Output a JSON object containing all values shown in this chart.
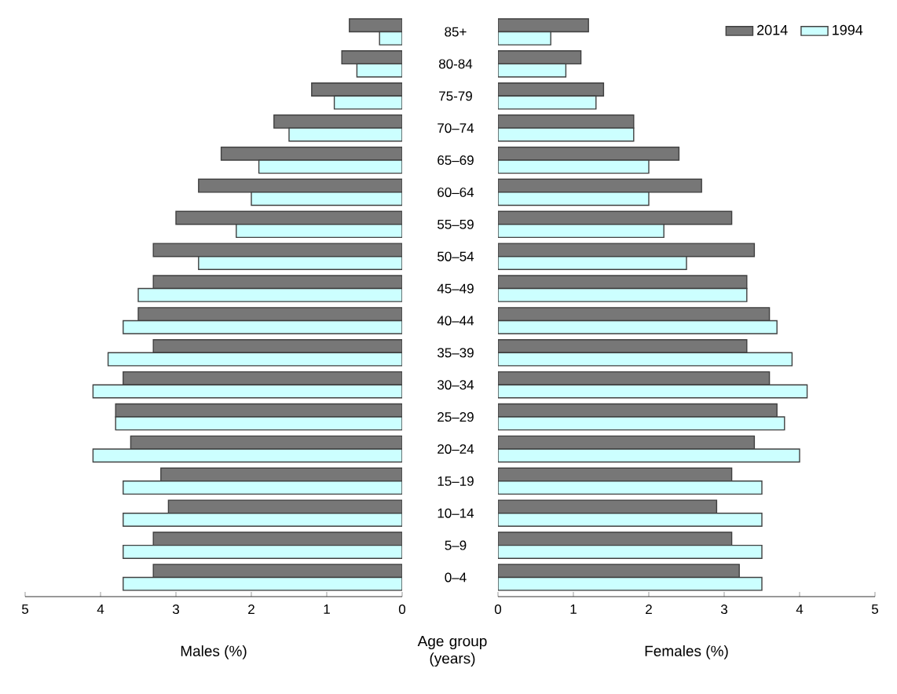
{
  "chart_data": [
    {
      "type": "bar",
      "orientation": "horizontal",
      "xlabel": "Males (%)",
      "xlim": [
        5,
        0
      ],
      "xticks": [
        5,
        4,
        3,
        2,
        1,
        0
      ],
      "categories": [
        "85+",
        "80-84",
        "75-79",
        "70–74",
        "65–69",
        "60–64",
        "55–59",
        "50–54",
        "45–49",
        "40–44",
        "35–39",
        "30–34",
        "25–29",
        "20–24",
        "15–19",
        "10–14",
        "5–9",
        "0–4"
      ],
      "series": [
        {
          "color": "#777777",
          "values": [
            0.7,
            0.8,
            1.2,
            1.7,
            2.4,
            2.7,
            3.0,
            3.3,
            3.3,
            3.5,
            3.3,
            3.7,
            3.8,
            3.6,
            3.2,
            3.1,
            3.3,
            3.3
          ]
        },
        {
          "color": "#ccffff",
          "values": [
            0.3,
            0.6,
            0.9,
            1.5,
            1.9,
            2.0,
            2.2,
            2.7,
            3.5,
            3.7,
            3.9,
            4.1,
            3.8,
            4.1,
            3.7,
            3.7,
            3.7,
            3.7
          ]
        }
      ]
    },
    {
      "type": "bar",
      "orientation": "horizontal",
      "xlabel": "Females (%)",
      "ylabel": "Age group (years)",
      "tick_labels": "x",
      "legend": "top right",
      "xlim": [
        0,
        5
      ],
      "xticks": [
        0,
        1,
        2,
        3,
        4,
        5
      ],
      "categories": [
        null,
        null,
        null,
        null,
        null,
        null,
        null,
        null,
        null,
        null,
        null,
        null,
        null,
        null,
        null,
        null,
        null,
        null
      ],
      "series": [
        {
          "name": "2014",
          "color": "#777777",
          "values": [
            1.2,
            1.1,
            1.4,
            1.8,
            2.4,
            2.7,
            3.1,
            3.4,
            3.3,
            3.6,
            3.3,
            3.6,
            3.7,
            3.4,
            3.1,
            2.9,
            3.1,
            3.2
          ]
        },
        {
          "name": "1994",
          "color": "#ccffff",
          "values": [
            0.7,
            0.9,
            1.3,
            1.8,
            2.0,
            2.0,
            2.2,
            2.5,
            3.3,
            3.7,
            3.9,
            4.1,
            3.8,
            4.0,
            3.5,
            3.5,
            3.5,
            3.5
          ]
        }
      ]
    }
  ]
}
